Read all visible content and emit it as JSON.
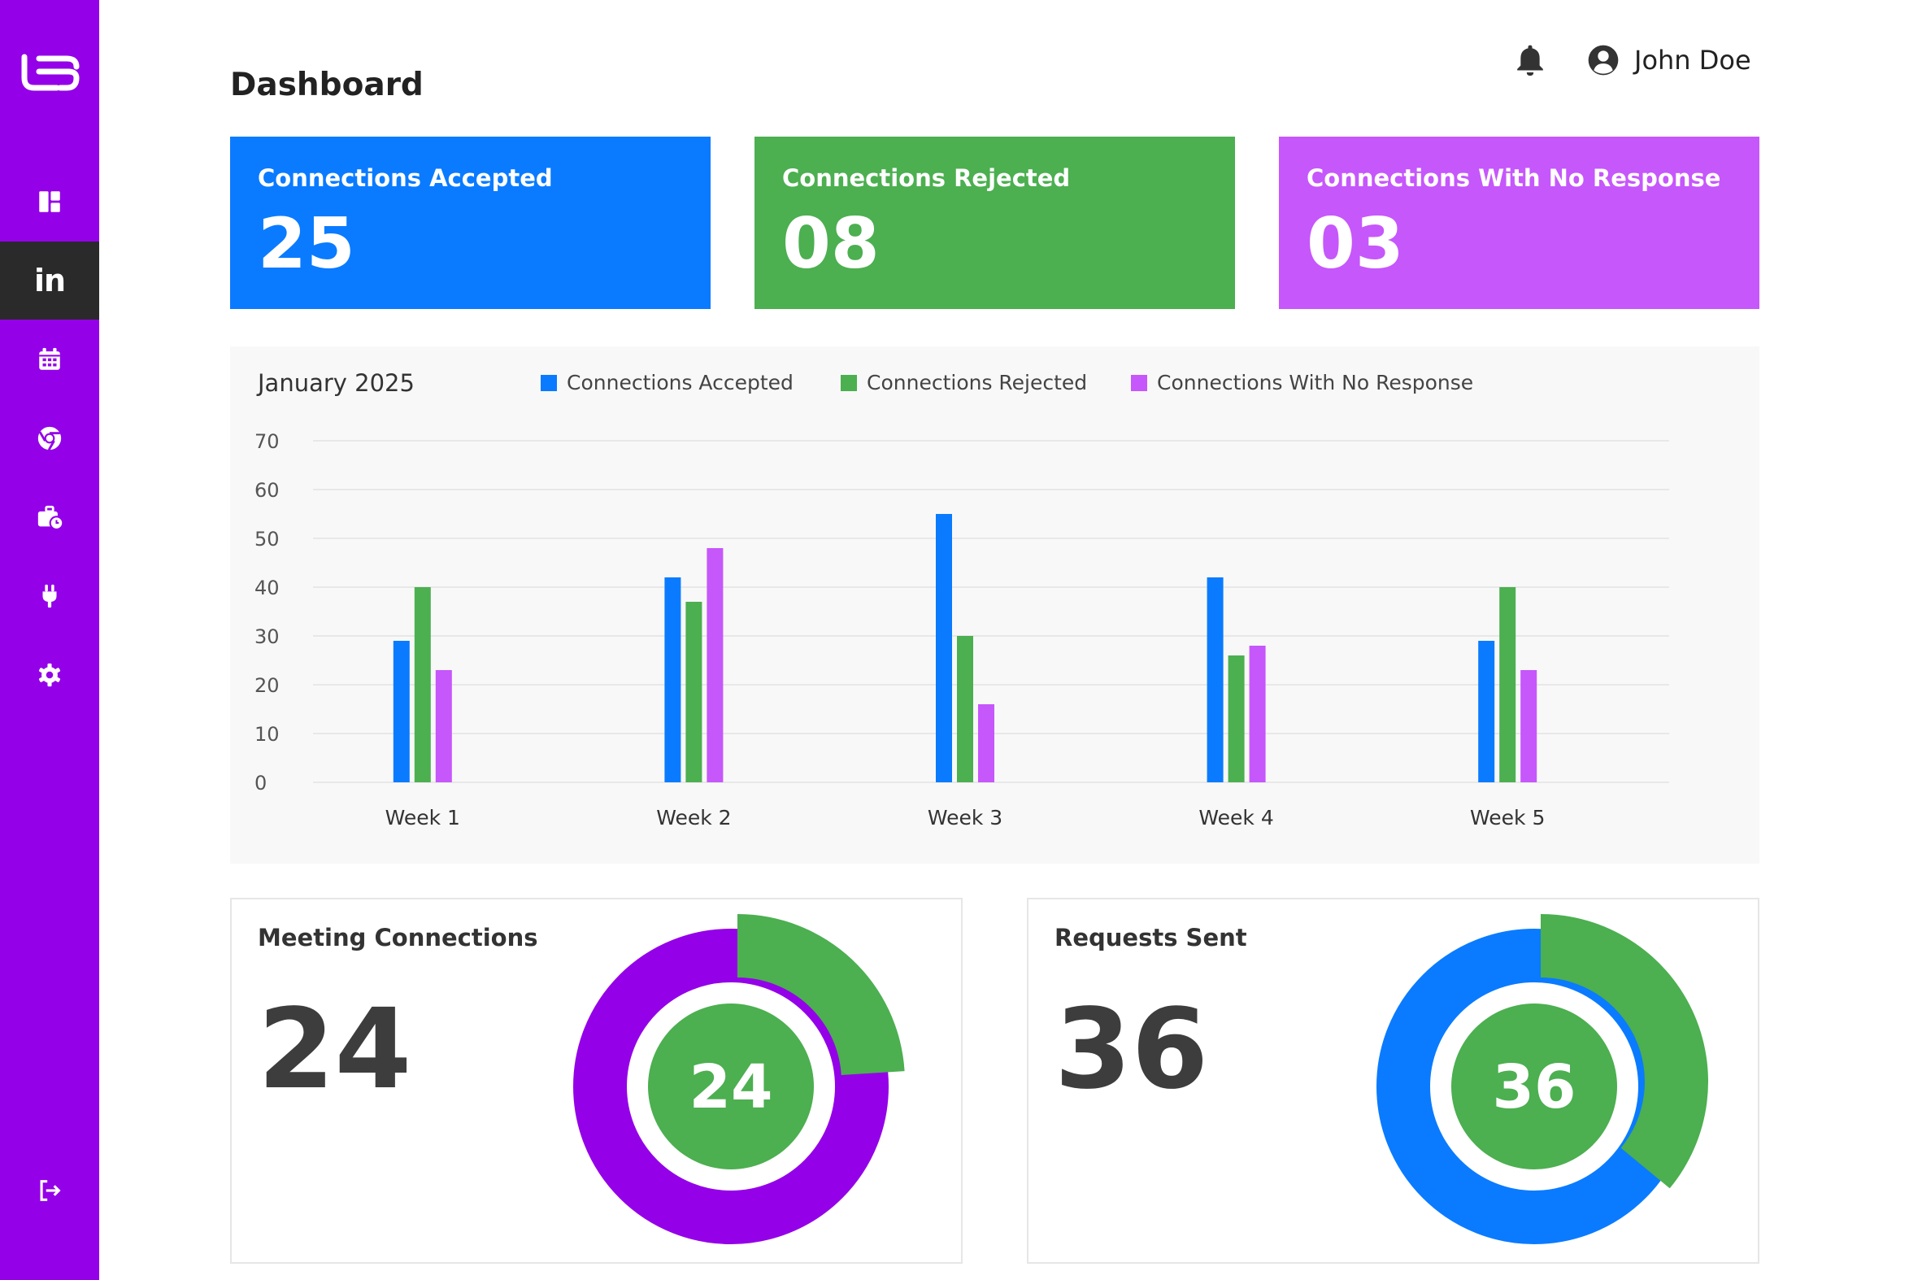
{
  "sidebar": {
    "logo": "linked-logo-icon",
    "items": [
      {
        "icon": "dashboard-icon"
      },
      {
        "icon": "linkedin-icon",
        "text": "in",
        "active": true
      },
      {
        "icon": "calendar-icon"
      },
      {
        "icon": "chrome-icon"
      },
      {
        "icon": "briefcase-clock-icon"
      },
      {
        "icon": "plug-icon"
      },
      {
        "icon": "gear-icon"
      }
    ],
    "logout_icon": "logout-icon"
  },
  "header": {
    "title": "Dashboard",
    "user_name": "John Doe"
  },
  "stats": {
    "accepted": {
      "label": "Connections Accepted",
      "value": "25",
      "color": "#0a7bff"
    },
    "rejected": {
      "label": "Connections Rejected",
      "value": "08",
      "color": "#4caf50"
    },
    "no_response": {
      "label": "Connections With No Response",
      "value": "03",
      "color": "#c657fb"
    }
  },
  "chart_data": {
    "type": "bar",
    "title": "January 2025",
    "categories": [
      "Week 1",
      "Week 2",
      "Week 3",
      "Week 4",
      "Week 5"
    ],
    "series": [
      {
        "name": "Connections Accepted",
        "color": "#0a7bff",
        "values": [
          29,
          42,
          55,
          42,
          29
        ]
      },
      {
        "name": "Connections Rejected",
        "color": "#4caf50",
        "values": [
          40,
          37,
          30,
          26,
          40
        ]
      },
      {
        "name": "Connections With No Response",
        "color": "#c657fb",
        "values": [
          23,
          48,
          16,
          28,
          23
        ]
      }
    ],
    "yticks": [
      0,
      10,
      20,
      30,
      40,
      50,
      60,
      70
    ],
    "ylim": [
      0,
      70
    ],
    "grid": true,
    "legend": "top"
  },
  "meeting": {
    "title": "Meeting Connections",
    "value": "24",
    "center": "24",
    "green_fraction": 0.24,
    "colors": {
      "main": "#9400e8",
      "accent": "#4caf50"
    }
  },
  "requests": {
    "title": "Requests Sent",
    "value": "36",
    "center": "36",
    "green_fraction": 0.36,
    "colors": {
      "main": "#0a7bff",
      "accent": "#4caf50"
    }
  }
}
